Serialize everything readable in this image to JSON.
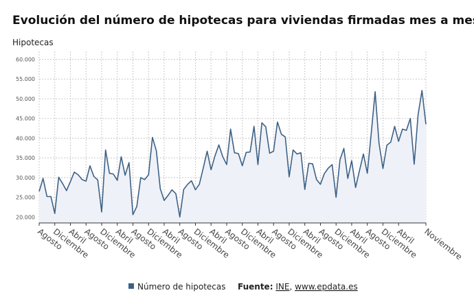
{
  "chart_data": {
    "type": "area",
    "title": "Evolución del número de hipotecas para viviendas firmadas mes a mes en España",
    "ylabel": "Hipotecas",
    "xlabel": "",
    "ylim": [
      18500,
      62000
    ],
    "yticks": [
      "20.000",
      "25.000",
      "30.000",
      "35.000",
      "40.000",
      "45.000",
      "50.000",
      "55.000",
      "60.000"
    ],
    "ytick_values": [
      20000,
      25000,
      30000,
      35000,
      40000,
      45000,
      50000,
      55000,
      60000
    ],
    "xtick_labels": [
      "Agosto",
      "Diciembre",
      "Abril",
      "Agosto",
      "Diciembre",
      "Abril",
      "Agosto",
      "Diciembre",
      "Abril",
      "Agosto",
      "Diciembre",
      "Abril",
      "Agosto",
      "Diciembre",
      "Abril",
      "Agosto",
      "Diciembre",
      "Abril",
      "Agosto",
      "Diciembre",
      "Abril",
      "Agosto",
      "Diciembre",
      "Abril",
      "Noviembre"
    ],
    "xtick_index": [
      0,
      4,
      8,
      12,
      16,
      20,
      24,
      28,
      32,
      36,
      40,
      44,
      48,
      52,
      56,
      60,
      64,
      68,
      72,
      76,
      80,
      84,
      88,
      92,
      99
    ],
    "series": [
      {
        "name": "Número de hipotecas",
        "color": "#3d6185",
        "values": [
          26500,
          29800,
          25200,
          25200,
          20900,
          30100,
          28500,
          26700,
          29000,
          31400,
          30700,
          29500,
          29100,
          33000,
          30300,
          29400,
          21300,
          37000,
          31100,
          30900,
          29300,
          35300,
          30600,
          33800,
          20600,
          22700,
          30000,
          29500,
          30700,
          40200,
          36800,
          27200,
          24200,
          25500,
          26900,
          25900,
          20000,
          27000,
          28300,
          29200,
          26900,
          28300,
          32400,
          36700,
          32000,
          35500,
          38300,
          35300,
          33300,
          42300,
          36300,
          36100,
          33000,
          36400,
          36500,
          43000,
          33300,
          43900,
          42900,
          36200,
          36700,
          44100,
          41000,
          40300,
          30200,
          37000,
          36000,
          36300,
          27000,
          33600,
          33500,
          29500,
          28300,
          31000,
          32400,
          33300,
          25000,
          34500,
          37400,
          29800,
          34300,
          27500,
          31800,
          36000,
          31100,
          41200,
          51800,
          38700,
          32300,
          38200,
          39000,
          43000,
          39200,
          42300,
          42000,
          45000,
          33400,
          46000,
          52100,
          43500
        ]
      }
    ],
    "legend": "bottom",
    "fill_color": "#eef1f7"
  },
  "footer": {
    "source_label": "Fuente:",
    "source_ine": "INE",
    "source_sep": ", ",
    "source_site": "www.epdata.es"
  }
}
